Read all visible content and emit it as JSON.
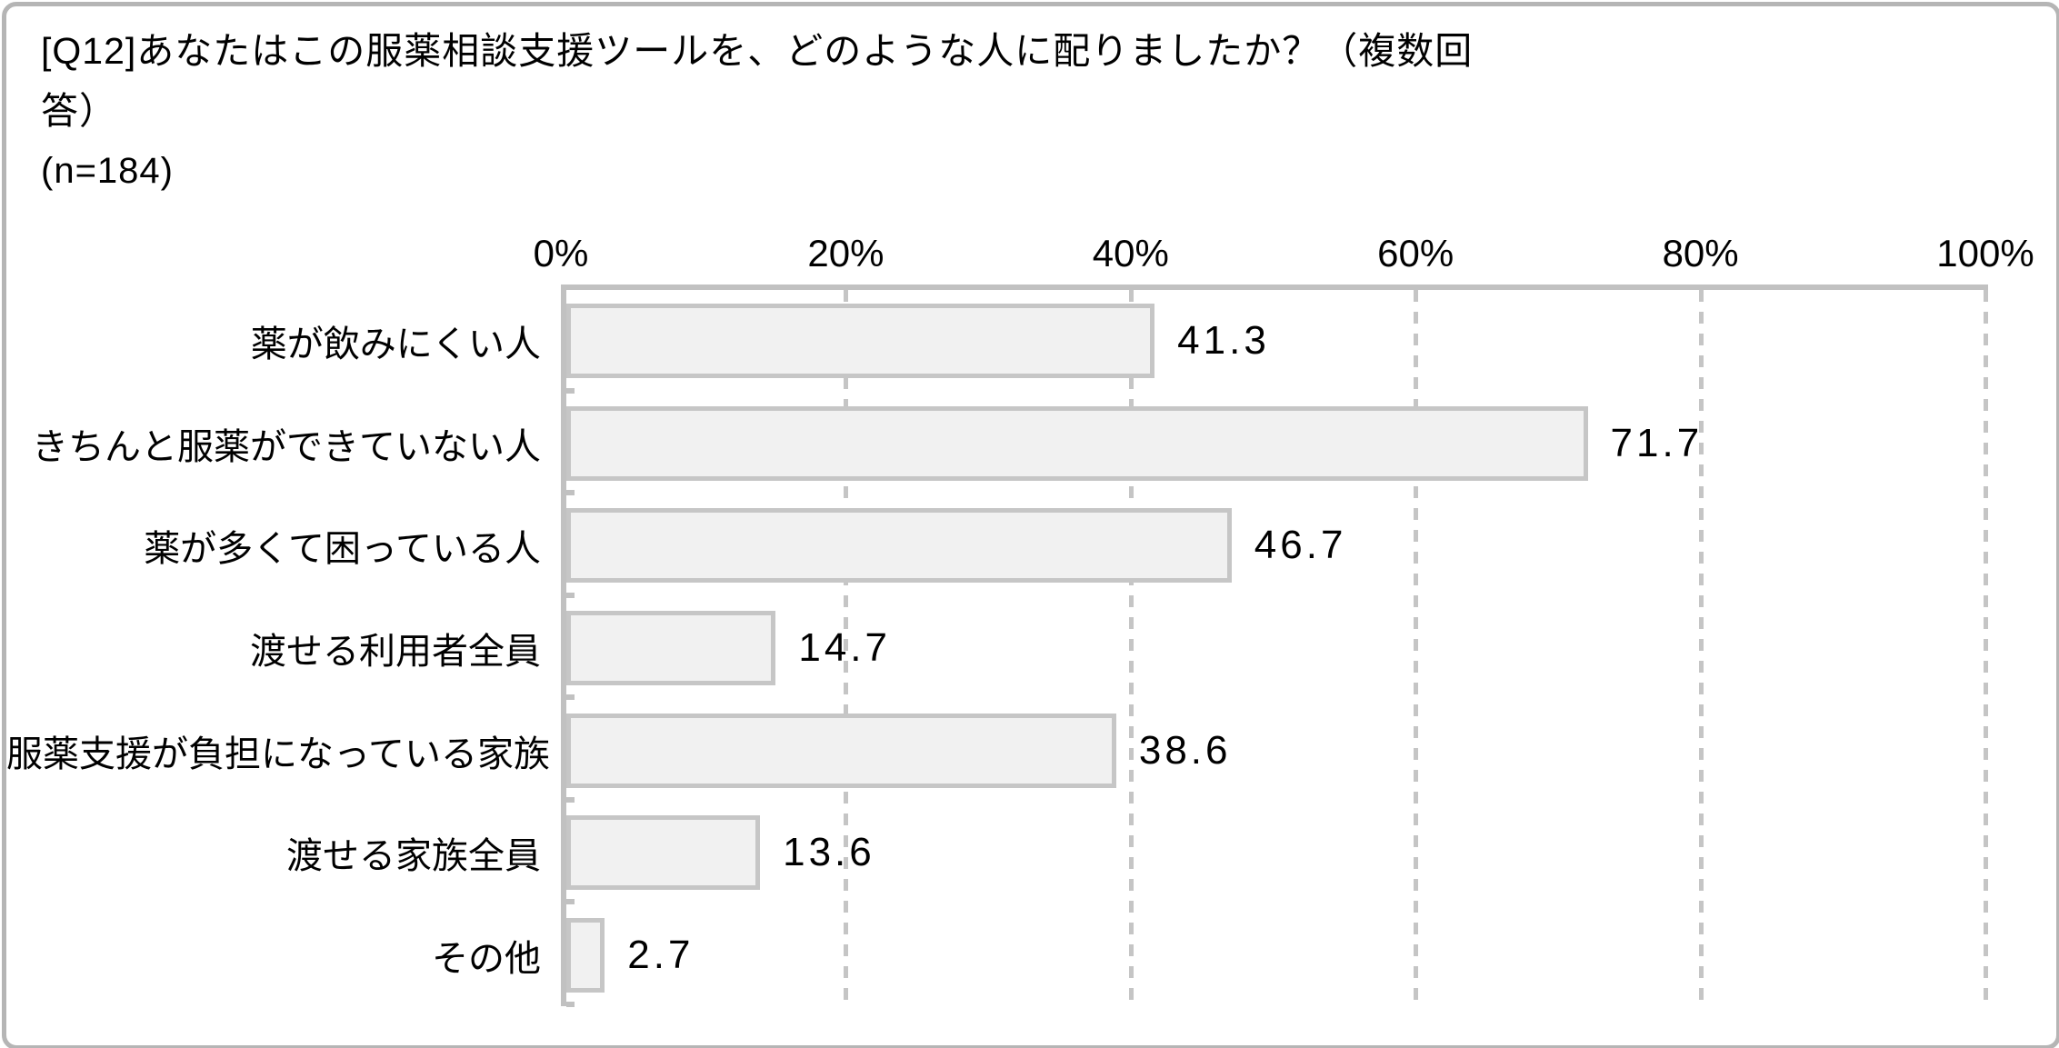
{
  "header": {
    "title_line1": "[Q12]あなたはこの服薬相談支援ツールを、どのような人に配りましたか？（複数回",
    "title_line2": "答）",
    "sample_size": "(n=184)"
  },
  "chart_data": {
    "type": "bar",
    "orientation": "horizontal",
    "title": "[Q12]あなたはこの服薬相談支援ツールを、どのような人に配りましたか？（複数回答）",
    "sample_size_label": "(n=184)",
    "n": 184,
    "categories": [
      "薬が飲みにくい人",
      "きちんと服薬ができていない人",
      "薬が多くて困っている人",
      "渡せる利用者全員",
      "服薬支援が負担になっている家族",
      "渡せる家族全員",
      "その他"
    ],
    "values": [
      41.3,
      71.7,
      46.7,
      14.7,
      38.6,
      13.6,
      2.7
    ],
    "value_labels": [
      "41.3",
      "71.7",
      "46.7",
      "14.7",
      "38.6",
      "13.6",
      "2.7"
    ],
    "x_ticks": [
      "0%",
      "20%",
      "40%",
      "60%",
      "80%",
      "100%"
    ],
    "xlim": [
      0,
      100
    ],
    "x_tick_step": 20,
    "grid": "vertical-dashed-at-each-20pct",
    "legend": "none",
    "colors": {
      "bar_fill": "#f1f1f1",
      "bar_border": "#c6c6c6",
      "axis": "#c1c1c1",
      "gridline": "#c5c5c5",
      "text": "#000000",
      "frame_border": "#b5b5b5"
    }
  }
}
